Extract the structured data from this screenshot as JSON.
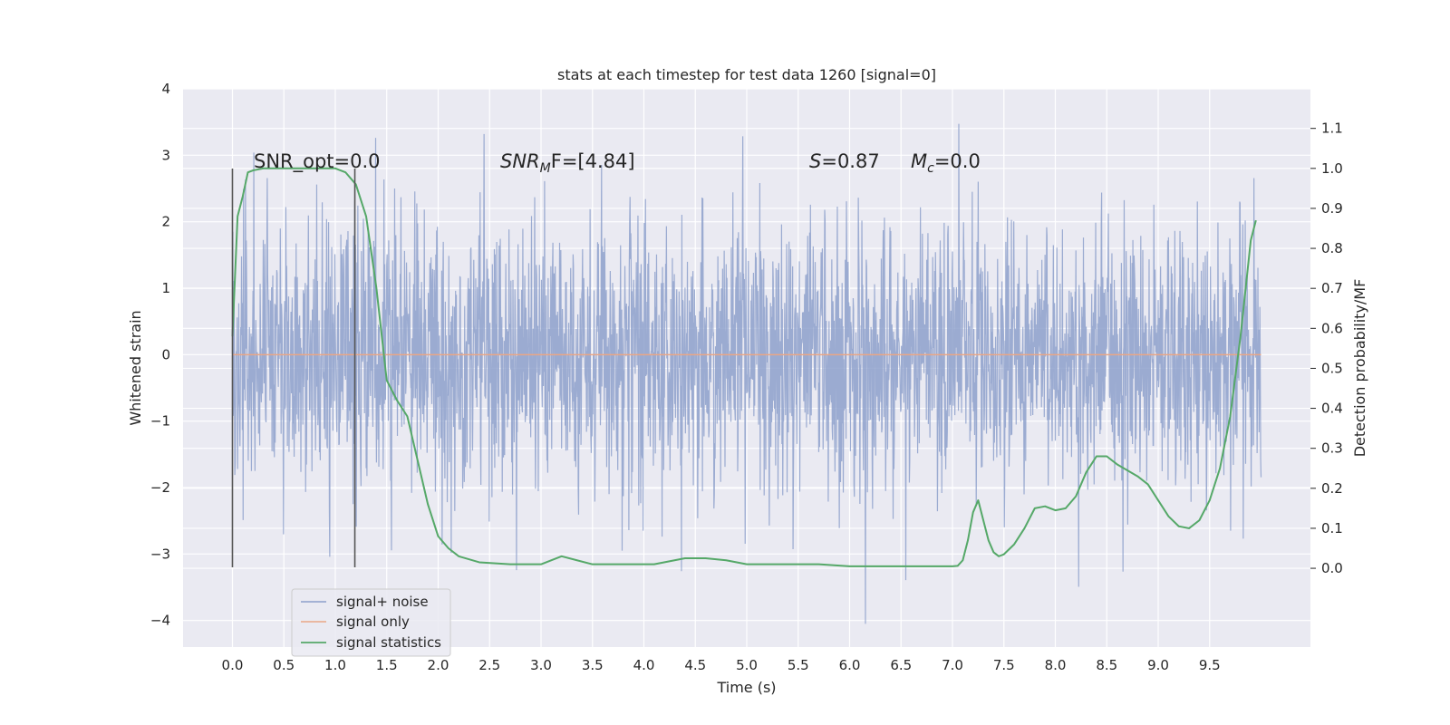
{
  "chart_data": {
    "type": "line",
    "title": "stats at each timestep for test data 1260 [signal=0]",
    "xlabel": "Time (s)",
    "ylabel": "Whitened strain",
    "ylabel_right": "Detection probability/MF",
    "xlim": [
      -0.48,
      10.48
    ],
    "ylim": [
      -4.4,
      4.0
    ],
    "ylim_right": [
      -0.197,
      1.199
    ],
    "grid": true,
    "legend_placement": "lower-left",
    "x_ticks": [
      0.0,
      0.5,
      1.0,
      1.5,
      2.0,
      2.5,
      3.0,
      3.5,
      4.0,
      4.5,
      5.0,
      5.5,
      6.0,
      6.5,
      7.0,
      7.5,
      8.0,
      8.5,
      9.0,
      9.5
    ],
    "x_tick_labels": [
      "0.0",
      "0.5",
      "1.0",
      "1.5",
      "2.0",
      "2.5",
      "3.0",
      "3.5",
      "4.0",
      "4.5",
      "5.0",
      "5.5",
      "6.0",
      "6.5",
      "7.0",
      "7.5",
      "8.0",
      "8.5",
      "9.0",
      "9.5"
    ],
    "y_ticks": [
      -4,
      -3,
      -2,
      -1,
      0,
      1,
      2,
      3,
      4
    ],
    "y_tick_labels": [
      "−4",
      "−3",
      "−2",
      "−1",
      "0",
      "1",
      "2",
      "3",
      "4"
    ],
    "y_ticks_right": [
      0.0,
      0.1,
      0.2,
      0.3,
      0.4,
      0.5,
      0.6,
      0.7,
      0.8,
      0.9,
      1.0,
      1.1
    ],
    "y_tick_labels_right": [
      "0.0",
      "0.1",
      "0.2",
      "0.3",
      "0.4",
      "0.5",
      "0.6",
      "0.7",
      "0.8",
      "0.9",
      "1.0",
      "1.1"
    ],
    "annotations": {
      "snr_opt": "SNR_opt=0.0",
      "snr_mf_prefix": "SNR",
      "snr_mf_sub": "M",
      "snr_mf_suffix": "F=[4.84]",
      "s_prefix": "S",
      "s_value": "=0.87",
      "mc_prefix": "M",
      "mc_sub": "c",
      "mc_value": "=0.0"
    },
    "vertical_lines_x": [
      0.0,
      1.19
    ],
    "vertical_lines_y": [
      -3.2,
      2.8
    ],
    "series": [
      {
        "name": "signal+ noise",
        "color": "#8da0cb",
        "kind": "noise",
        "x_range": [
          0.0,
          10.0
        ],
        "typical_amplitude": 1.0,
        "max": 3.6,
        "min": -4.05
      },
      {
        "name": "signal only",
        "color": "#e9a686",
        "x": [
          0.0,
          10.0
        ],
        "y": [
          0.0,
          0.0
        ]
      },
      {
        "name": "signal statistics",
        "color": "#55a868",
        "axis": "right",
        "x": [
          0.0,
          0.05,
          0.1,
          0.15,
          0.2,
          0.3,
          0.5,
          0.8,
          1.0,
          1.1,
          1.2,
          1.3,
          1.4,
          1.5,
          1.6,
          1.7,
          1.8,
          1.9,
          2.0,
          2.1,
          2.2,
          2.4,
          2.7,
          3.0,
          3.2,
          3.5,
          4.0,
          4.1,
          4.4,
          4.6,
          4.8,
          5.0,
          5.5,
          5.7,
          6.0,
          6.5,
          6.7,
          7.0,
          7.05,
          7.1,
          7.15,
          7.2,
          7.25,
          7.3,
          7.35,
          7.4,
          7.45,
          7.5,
          7.6,
          7.7,
          7.8,
          7.9,
          8.0,
          8.1,
          8.2,
          8.3,
          8.4,
          8.5,
          8.6,
          8.7,
          8.8,
          8.9,
          9.0,
          9.1,
          9.2,
          9.3,
          9.4,
          9.5,
          9.6,
          9.7,
          9.8,
          9.9,
          9.95
        ],
        "y": [
          0.58,
          0.88,
          0.93,
          0.99,
          0.995,
          1.0,
          1.0,
          1.0,
          1.0,
          0.99,
          0.96,
          0.88,
          0.7,
          0.47,
          0.42,
          0.38,
          0.27,
          0.16,
          0.08,
          0.05,
          0.03,
          0.015,
          0.01,
          0.01,
          0.03,
          0.01,
          0.01,
          0.01,
          0.025,
          0.025,
          0.02,
          0.01,
          0.01,
          0.01,
          0.005,
          0.005,
          0.005,
          0.005,
          0.006,
          0.02,
          0.07,
          0.14,
          0.17,
          0.12,
          0.07,
          0.04,
          0.03,
          0.035,
          0.06,
          0.1,
          0.15,
          0.155,
          0.145,
          0.15,
          0.18,
          0.24,
          0.28,
          0.28,
          0.26,
          0.245,
          0.23,
          0.21,
          0.17,
          0.13,
          0.105,
          0.1,
          0.12,
          0.17,
          0.25,
          0.38,
          0.58,
          0.82,
          0.87
        ]
      }
    ]
  }
}
